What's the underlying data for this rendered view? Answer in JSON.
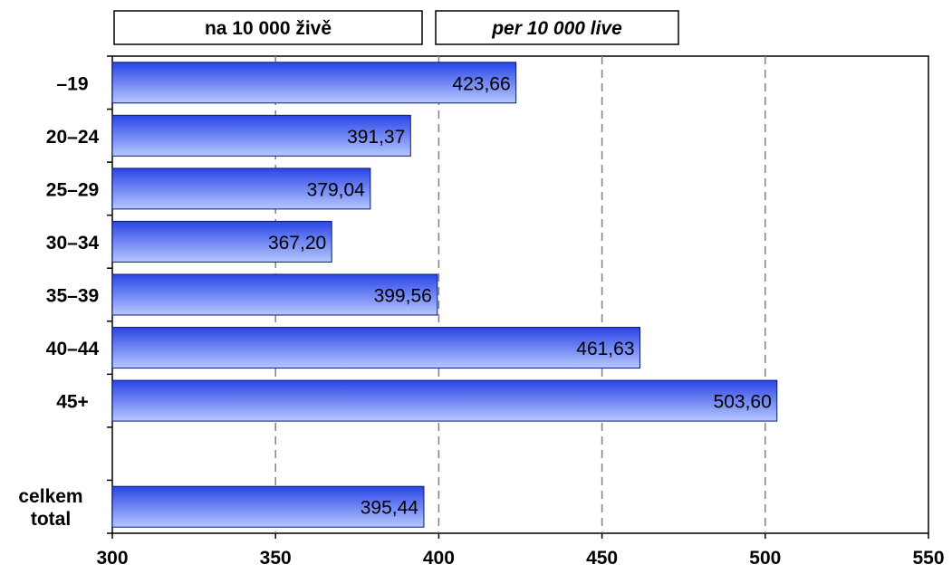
{
  "header": {
    "label_cz": "na 10 000 živě",
    "label_en": "per 10 000 live"
  },
  "chart_data": {
    "type": "bar",
    "orientation": "horizontal",
    "categories": [
      "–19",
      "20–24",
      "25–29",
      "30–34",
      "35–39",
      "40–44",
      "45+",
      "",
      "celkem total"
    ],
    "category_lines": [
      [
        "–19"
      ],
      [
        "20–24"
      ],
      [
        "25–29"
      ],
      [
        "30–34"
      ],
      [
        "35–39"
      ],
      [
        "40–44"
      ],
      [
        "45+"
      ],
      [],
      [
        "celkem",
        "total"
      ]
    ],
    "values": [
      423.66,
      391.37,
      379.04,
      367.2,
      399.56,
      461.63,
      503.6,
      null,
      395.44
    ],
    "value_labels": [
      "423,66",
      "391,37",
      "379,04",
      "367,20",
      "399,56",
      "461,63",
      "503,60",
      "",
      "395,44"
    ],
    "xlim": [
      300,
      550
    ],
    "xticks": [
      300,
      350,
      400,
      450,
      500,
      550
    ],
    "grid": "vertical-dashed",
    "bar_color_top": "#2a45e6",
    "bar_color_bottom": "#b6c8ff",
    "grid_color": "#808080"
  }
}
